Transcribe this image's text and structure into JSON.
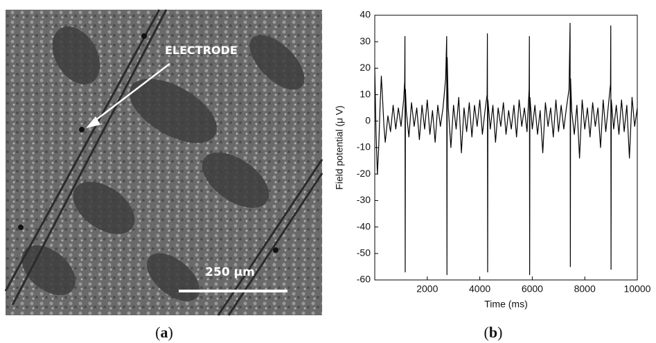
{
  "panel_a": {
    "label": "ELECTRODE",
    "scale_bar": "250 µm",
    "caption_open": "(",
    "caption_letter": "a",
    "caption_close": ")"
  },
  "chart_data": {
    "type": "line",
    "x_label": "Time (ms)",
    "y_label": "Field potential (μ V)",
    "caption_open": "(",
    "caption_letter": "b",
    "caption_close": ")",
    "color": "#000000",
    "xlim": [
      0,
      10000
    ],
    "xticks": [
      2000,
      4000,
      6000,
      8000,
      10000
    ],
    "ylim": [
      -60,
      40
    ],
    "yticks": [
      -60,
      -50,
      -40,
      -30,
      -20,
      -10,
      0,
      10,
      20,
      30,
      40
    ],
    "x": [
      0,
      50,
      100,
      150,
      200,
      250,
      300,
      350,
      400,
      450,
      500,
      600,
      700,
      800,
      900,
      1000,
      1100,
      1140,
      1150,
      1160,
      1170,
      1200,
      1300,
      1400,
      1500,
      1600,
      1700,
      1800,
      1900,
      2000,
      2100,
      2200,
      2300,
      2400,
      2500,
      2600,
      2700,
      2740,
      2750,
      2760,
      2800,
      2900,
      3000,
      3100,
      3200,
      3300,
      3400,
      3500,
      3600,
      3700,
      3800,
      3900,
      4000,
      4100,
      4200,
      4280,
      4290,
      4300,
      4310,
      4400,
      4500,
      4600,
      4700,
      4800,
      4900,
      5000,
      5100,
      5200,
      5300,
      5400,
      5500,
      5600,
      5700,
      5800,
      5880,
      5890,
      5900,
      5910,
      6000,
      6100,
      6200,
      6300,
      6400,
      6500,
      6600,
      6700,
      6800,
      6900,
      7000,
      7100,
      7200,
      7300,
      7400,
      7440,
      7450,
      7460,
      7500,
      7600,
      7700,
      7800,
      7900,
      8000,
      8100,
      8200,
      8300,
      8400,
      8500,
      8600,
      8700,
      8800,
      8900,
      8980,
      8990,
      9000,
      9010,
      9100,
      9200,
      9300,
      9400,
      9500,
      9600,
      9700,
      9800,
      9900,
      10000
    ],
    "values": [
      20,
      -5,
      -20,
      -10,
      5,
      17,
      8,
      -2,
      -8,
      -3,
      2,
      -4,
      6,
      -3,
      5,
      -2,
      8,
      15,
      32,
      -57,
      12,
      4,
      -6,
      7,
      -2,
      5,
      -7,
      6,
      -3,
      8,
      -5,
      4,
      -8,
      6,
      -2,
      5,
      16,
      32,
      -58,
      24,
      5,
      -10,
      6,
      -3,
      9,
      -12,
      5,
      -4,
      7,
      -6,
      6,
      -2,
      8,
      -5,
      4,
      10,
      33,
      -57,
      8,
      -3,
      6,
      -8,
      5,
      -2,
      7,
      -5,
      4,
      -3,
      6,
      -6,
      8,
      -2,
      5,
      -4,
      12,
      32,
      -58,
      9,
      -3,
      6,
      -5,
      4,
      -12,
      7,
      -2,
      5,
      -6,
      8,
      -4,
      6,
      -3,
      5,
      12,
      37,
      -55,
      16,
      4,
      -5,
      6,
      -14,
      8,
      -3,
      5,
      -6,
      7,
      -2,
      5,
      -10,
      8,
      -4,
      6,
      14,
      36,
      -56,
      8,
      -3,
      6,
      -5,
      8,
      -4,
      6,
      -14,
      9,
      -2,
      5
    ],
    "grid": false
  }
}
